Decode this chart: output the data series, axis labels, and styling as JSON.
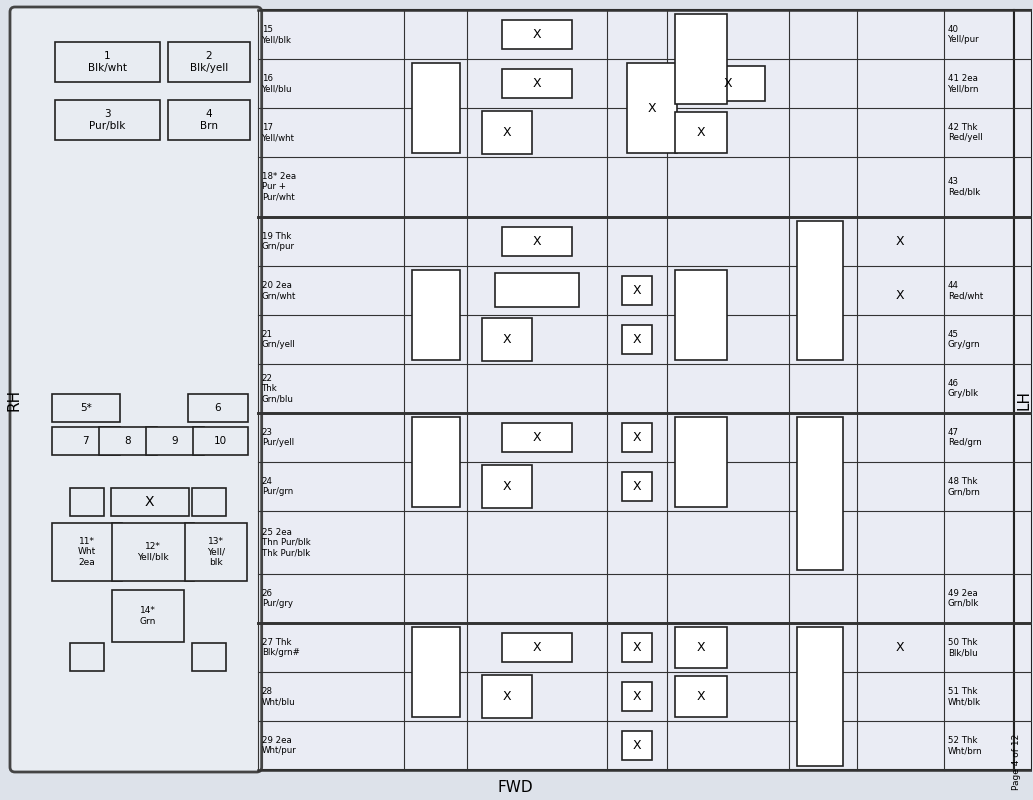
{
  "bg": "#dde2ea",
  "panel_bg": "#e8ecf2",
  "grid_bg": "#eaecf4",
  "bottom_label": "FWD",
  "left_label": "RH",
  "right_label": "LH",
  "page_note": "Page 4 of 12",
  "row_labels": [
    "15\nYell/blk",
    "16\nYell/blu",
    "17\nYell/wht",
    "18* 2ea\nPur +\nPur/wht",
    "19 Thk\nGrn/pur",
    "20 2ea\nGrn/wht",
    "21\nGrn/yell",
    "22\nThk\nGrn/blu",
    "23\nPur/yell",
    "24\nPur/grn",
    "25 2ea\nThn Pur/blk\nThk Pur/blk",
    "26\nPur/gry",
    "27 Thk\nBlk/grn#",
    "28\nWht/blu",
    "29 2ea\nWht/pur"
  ],
  "right_labels": [
    "40\nYell/pur",
    "41 2ea\nYell/brn",
    "42 Thk\nRed/yell",
    "43\nRed/blk",
    "",
    "44\nRed/wht",
    "45\nGry/grn",
    "46\nGry/blk",
    "47\nRed/grn",
    "48 Thk\nGrn/brn",
    "",
    "49 2ea\nGrn/blk",
    "50 Thk\nBlk/blu",
    "51 Thk\nWht/blk",
    "52 Thk\nWht/brn"
  ]
}
